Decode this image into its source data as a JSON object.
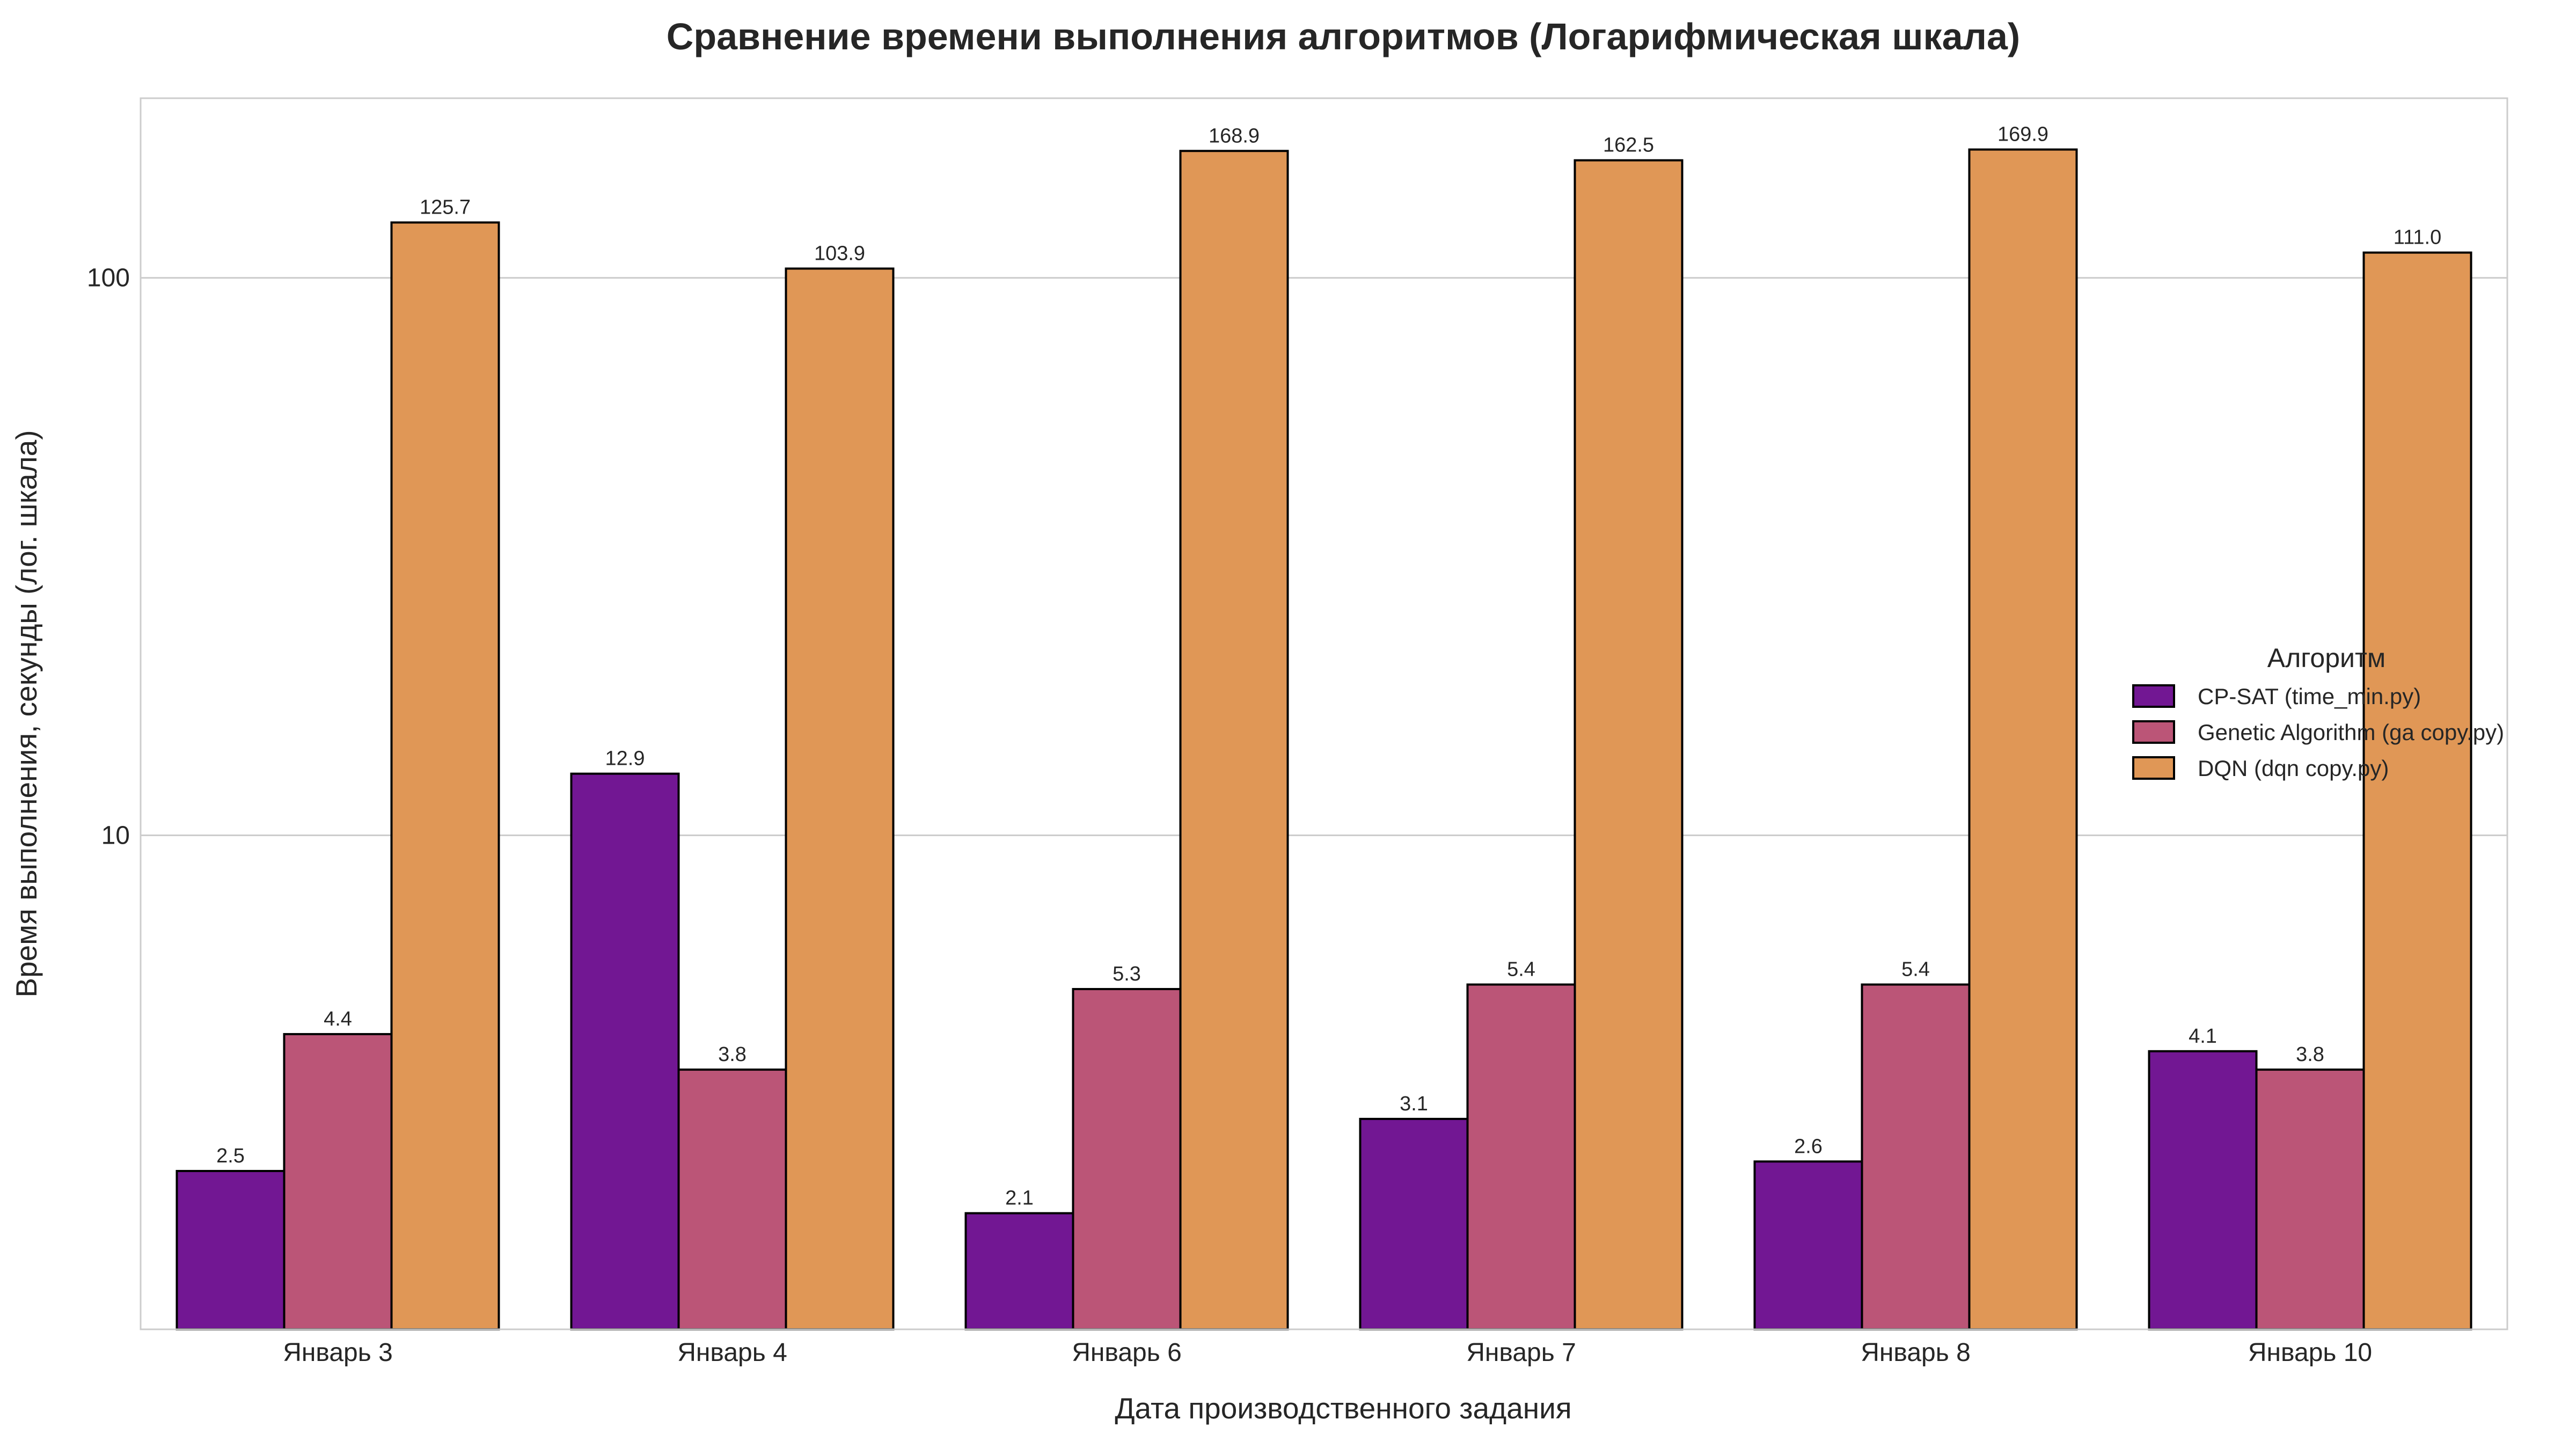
{
  "chart_data": {
    "type": "bar",
    "title": "Сравнение времени выполнения алгоритмов (Логарифмическая шкала)",
    "xlabel": "Дата производственного задания",
    "ylabel": "Время выполнения, секунды (лог. шкала)",
    "yscale": "log",
    "ylim": [
      1.3,
      210
    ],
    "yticks": [
      {
        "value": 10,
        "label": "10"
      },
      {
        "value": 100,
        "label": "100"
      }
    ],
    "grid": "horizontal",
    "categories": [
      "Январь 3",
      "Январь 4",
      "Январь 6",
      "Январь 7",
      "Январь 8",
      "Январь 10"
    ],
    "series": [
      {
        "name": "CP-SAT (time_min.py)",
        "color": "#721793",
        "values": [
          2.5,
          12.9,
          2.1,
          3.1,
          2.6,
          4.1
        ],
        "labels": [
          "2.5",
          "12.9",
          "2.1",
          "3.1",
          "2.6",
          "4.1"
        ]
      },
      {
        "name": "Genetic Algorithm (ga copy.py)",
        "color": "#bb5577",
        "values": [
          4.4,
          3.8,
          5.3,
          5.4,
          5.4,
          3.8
        ],
        "labels": [
          "4.4",
          "3.8",
          "5.3",
          "5.4",
          "5.4",
          "3.8"
        ]
      },
      {
        "name": "DQN (dqn copy.py)",
        "color": "#e09756",
        "values": [
          125.7,
          103.9,
          168.9,
          162.5,
          169.9,
          111.0
        ],
        "labels": [
          "125.7",
          "103.9",
          "168.9",
          "162.5",
          "169.9",
          "111.0"
        ]
      }
    ],
    "legend": {
      "title": "Алгоритм",
      "placement": "center-right"
    }
  }
}
